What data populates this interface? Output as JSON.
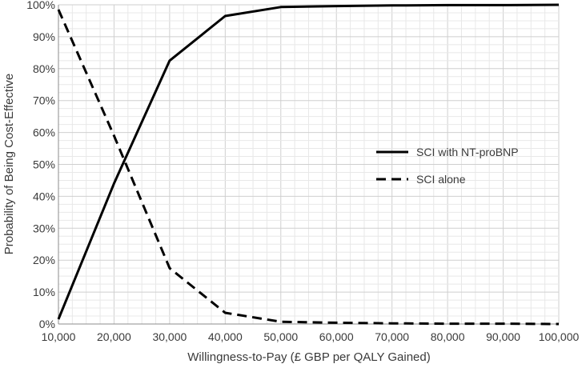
{
  "chart_data": {
    "type": "line",
    "title": "",
    "xlabel": "Willingness-to-Pay (£ GBP per QALY Gained)",
    "ylabel": "Probability of Being Cost-Effective",
    "x": [
      10000,
      20000,
      30000,
      40000,
      50000,
      60000,
      70000,
      80000,
      90000,
      100000
    ],
    "x_tick_labels": [
      "10,000",
      "20,000",
      "30,000",
      "40,000",
      "50,000",
      "60,000",
      "70,000",
      "80,000",
      "90,000",
      "100,000"
    ],
    "y_tick_labels": [
      "0%",
      "10%",
      "20%",
      "30%",
      "40%",
      "50%",
      "60%",
      "70%",
      "80%",
      "90%",
      "100%"
    ],
    "xlim": [
      10000,
      100000
    ],
    "ylim": [
      0,
      1
    ],
    "grid": true,
    "legend_position": "right",
    "series": [
      {
        "name": "SCI with NT-proBNP",
        "style": "solid",
        "color": "#000000",
        "values": [
          0.015,
          0.44,
          0.825,
          0.965,
          0.993,
          0.996,
          0.998,
          0.999,
          0.999,
          1.0
        ]
      },
      {
        "name": "SCI alone",
        "style": "dashed",
        "color": "#000000",
        "values": [
          0.985,
          0.59,
          0.175,
          0.035,
          0.007,
          0.004,
          0.002,
          0.001,
          0.001,
          0.0
        ]
      }
    ]
  }
}
